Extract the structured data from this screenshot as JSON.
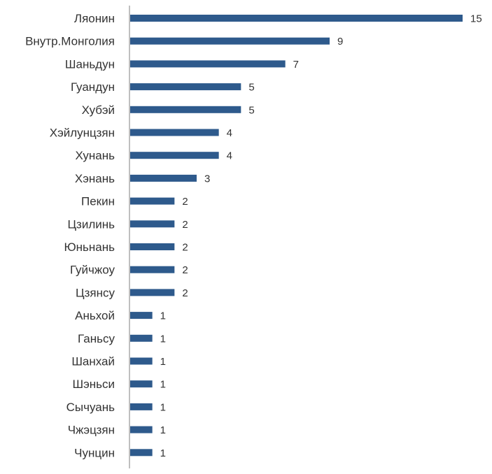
{
  "chart_data": {
    "type": "bar",
    "orientation": "horizontal",
    "categories": [
      "Ляонин",
      "Внутр.Монголия",
      "Шаньдун",
      "Гуандун",
      "Хубэй",
      "Хэйлунцзян",
      "Хунань",
      "Хэнань",
      "Пекин",
      "Цзилинь",
      "Юньнань",
      "Гуйчжоу",
      "Цзянсу",
      "Аньхой",
      "Ганьсу",
      "Шанхай",
      "Шэньси",
      "Сычуань",
      "Чжэцзян",
      "Чунцин"
    ],
    "values": [
      15,
      9,
      7,
      5,
      5,
      4,
      4,
      3,
      2,
      2,
      2,
      2,
      2,
      1,
      1,
      1,
      1,
      1,
      1,
      1
    ],
    "value_labels": [
      "15",
      "9",
      "7",
      "5",
      "5",
      "4",
      "4",
      "3",
      "2",
      "2",
      "2",
      "2",
      "2",
      "1",
      "1",
      "1",
      "1",
      "1",
      "1",
      "1"
    ],
    "xlim": [
      0,
      15
    ],
    "bar_color": "#2E5A8C",
    "axis_color": "#BFBFBF",
    "grid": false,
    "legend": false
  }
}
